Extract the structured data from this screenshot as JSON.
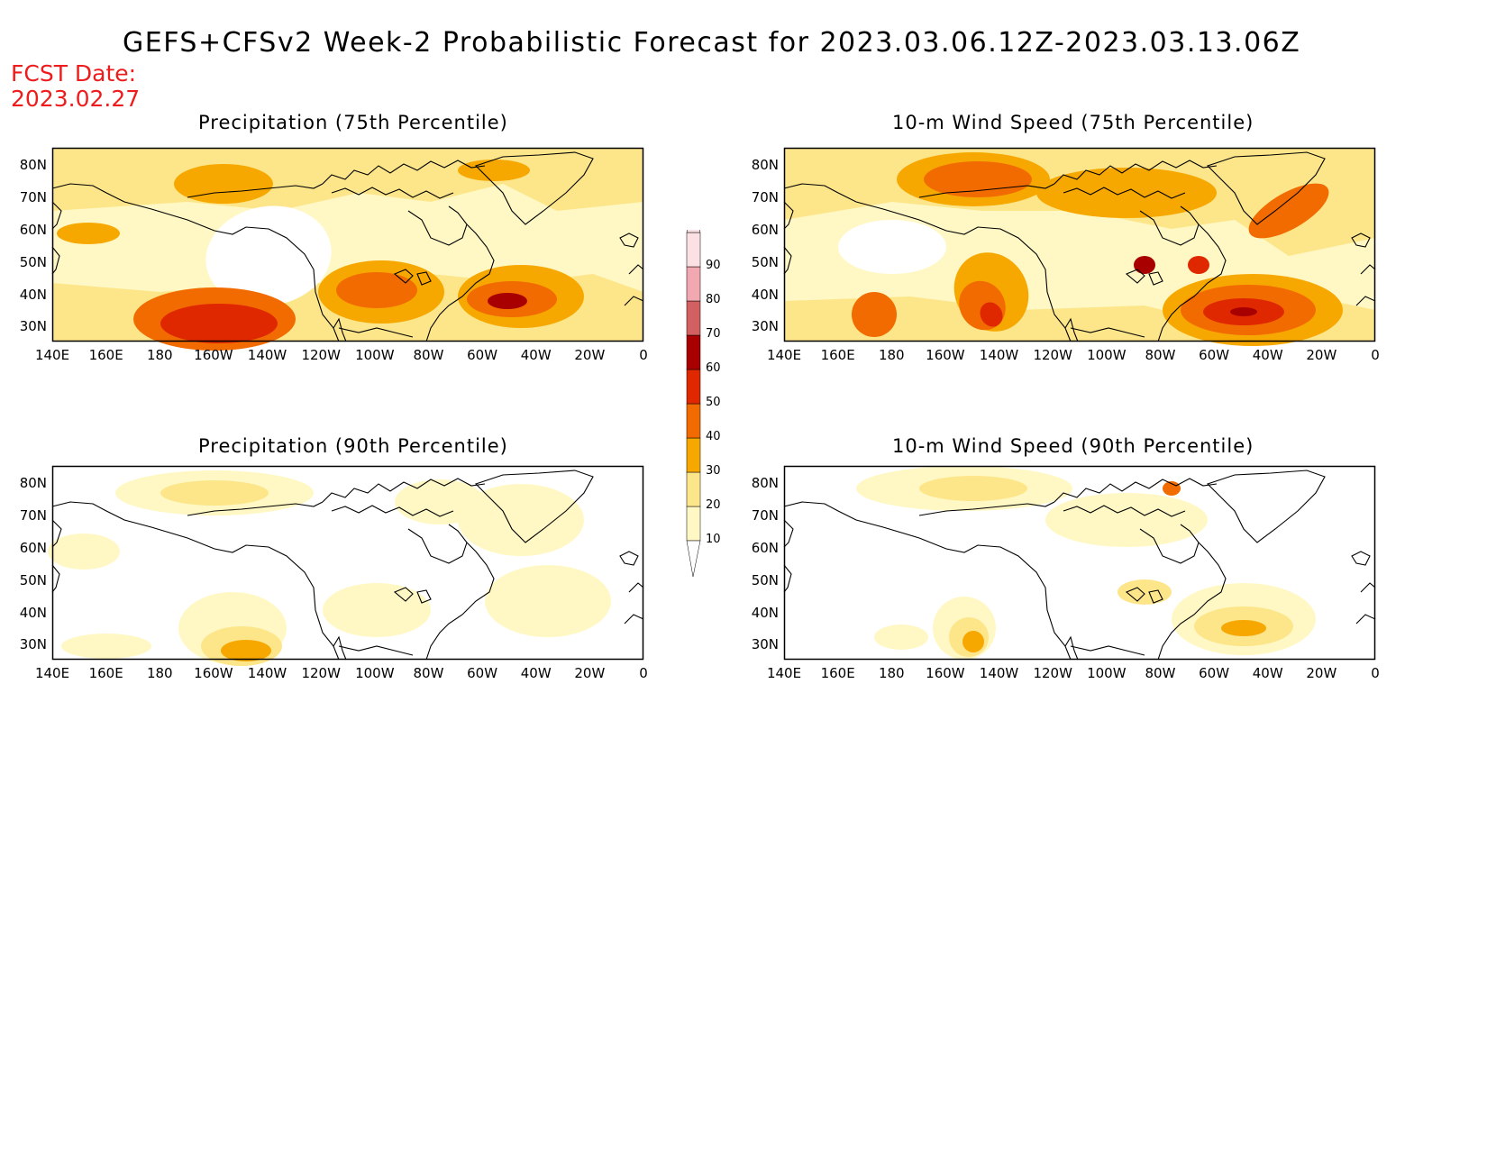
{
  "title": "GEFS+CFSv2 Week-2 Probabilistic Forecast for 2023.03.06.12Z-2023.03.13.06Z",
  "fcst_date_label": "FCST Date:",
  "fcst_date_value": "2023.02.27",
  "colors": {
    "c10": "#fff8c4",
    "c20": "#fde68a",
    "c30": "#f7a800",
    "c40": "#f26b00",
    "c50": "#e02800",
    "c60": "#a80000",
    "c70": "#d36060",
    "c80": "#f2a8b0",
    "c90": "#fbe0e4",
    "coast": "#000000",
    "title_red": "#ee1c1c"
  },
  "colorbar": {
    "levels": [
      "10",
      "20",
      "30",
      "40",
      "50",
      "60",
      "70",
      "80",
      "90"
    ]
  },
  "y_ticks": [
    "80N",
    "70N",
    "60N",
    "50N",
    "40N",
    "30N"
  ],
  "x_ticks": [
    "140E",
    "160E",
    "180",
    "160W",
    "140W",
    "120W",
    "100W",
    "80W",
    "60W",
    "40W",
    "20W",
    "0"
  ],
  "panels": [
    {
      "id": "precip75",
      "title": "Precipitation (75th Percentile)"
    },
    {
      "id": "wind75",
      "title": "10-m Wind Speed (75th Percentile)"
    },
    {
      "id": "precip90",
      "title": "Precipitation (90th Percentile)"
    },
    {
      "id": "wind90",
      "title": "10-m Wind Speed (90th Percentile)"
    }
  ]
}
